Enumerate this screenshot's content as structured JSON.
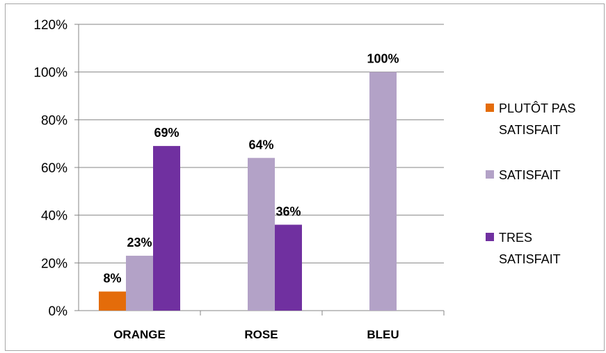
{
  "chart_data": {
    "type": "bar",
    "categories": [
      "ORANGE",
      "ROSE",
      "BLEU"
    ],
    "series": [
      {
        "name": "PLUTÔT PAS SATISFAIT",
        "legend_lines": [
          "PLUTÔT PAS",
          "SATISFAIT"
        ],
        "color": "#E46C0A",
        "values": [
          0.08,
          null,
          null
        ],
        "labels": [
          "8%",
          "",
          ""
        ]
      },
      {
        "name": "SATISFAIT",
        "legend_lines": [
          "SATISFAIT"
        ],
        "color": "#B3A2C7",
        "values": [
          0.23,
          0.64,
          1.0
        ],
        "labels": [
          "23%",
          "64%",
          "100%"
        ]
      },
      {
        "name": "TRES SATISFAIT",
        "legend_lines": [
          "TRES",
          "SATISFAIT"
        ],
        "color": "#7030A0",
        "values": [
          0.69,
          0.36,
          null
        ],
        "labels": [
          "69%",
          "36%",
          ""
        ]
      }
    ],
    "ylim": [
      0,
      1.2
    ],
    "yticks": [
      0,
      0.2,
      0.4,
      0.6,
      0.8,
      1.0,
      1.2
    ],
    "ytick_labels": [
      "0%",
      "20%",
      "40%",
      "60%",
      "80%",
      "100%",
      "120%"
    ],
    "grid": true,
    "legend_position": "right"
  }
}
